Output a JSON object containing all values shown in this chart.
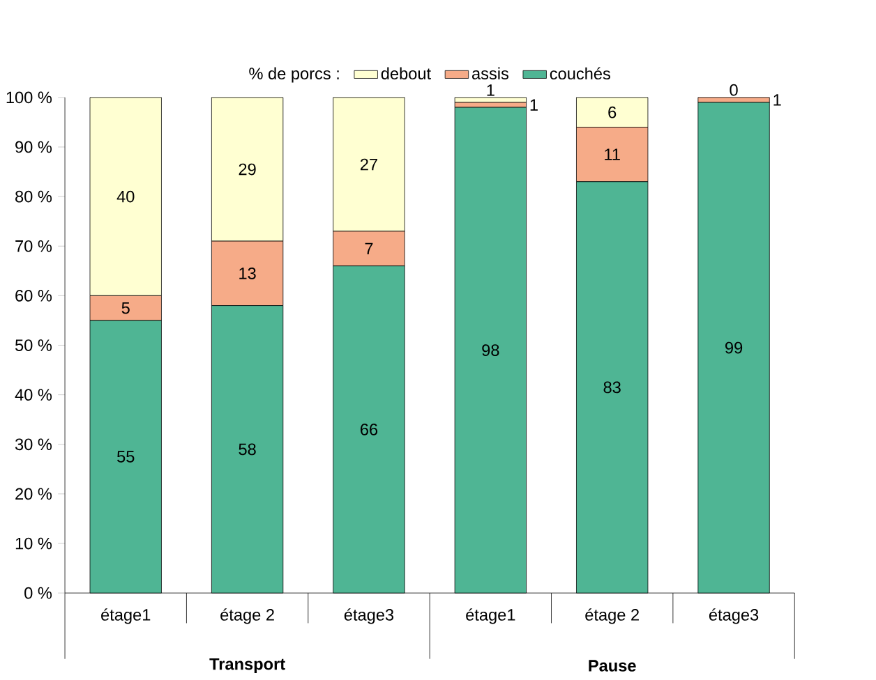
{
  "chart_data": {
    "type": "bar",
    "stacked": true,
    "legend_title": "% de porcs :",
    "legend": "top",
    "categories": [
      "étage1",
      "étage 2",
      "étage3",
      "étage1",
      "étage 2",
      "étage3"
    ],
    "series": [
      {
        "name": "couchés",
        "color": "#4fb594",
        "values": [
          55,
          58,
          66,
          98,
          83,
          99
        ]
      },
      {
        "name": "assis",
        "color": "#f6ab88",
        "values": [
          5,
          13,
          7,
          1,
          11,
          1
        ]
      },
      {
        "name": "debout",
        "color": "#ffffd2",
        "values": [
          40,
          29,
          27,
          1,
          6,
          0
        ]
      }
    ],
    "ylim": [
      0,
      100
    ],
    "yticks": [
      {
        "value": 0,
        "label": "0 %"
      },
      {
        "value": 10,
        "label": "10 %"
      },
      {
        "value": 20,
        "label": "20 %"
      },
      {
        "value": 30,
        "label": "30 %"
      },
      {
        "value": 40,
        "label": "40 %"
      },
      {
        "value": 50,
        "label": "50 %"
      },
      {
        "value": 60,
        "label": "60 %"
      },
      {
        "value": 70,
        "label": "70 %"
      },
      {
        "value": 80,
        "label": "80 %"
      },
      {
        "value": 90,
        "label": "90 %"
      },
      {
        "value": 100,
        "label": "100 %"
      }
    ],
    "data_labels": true,
    "grid": false,
    "annotations": [
      "Transport",
      "Pause"
    ]
  }
}
